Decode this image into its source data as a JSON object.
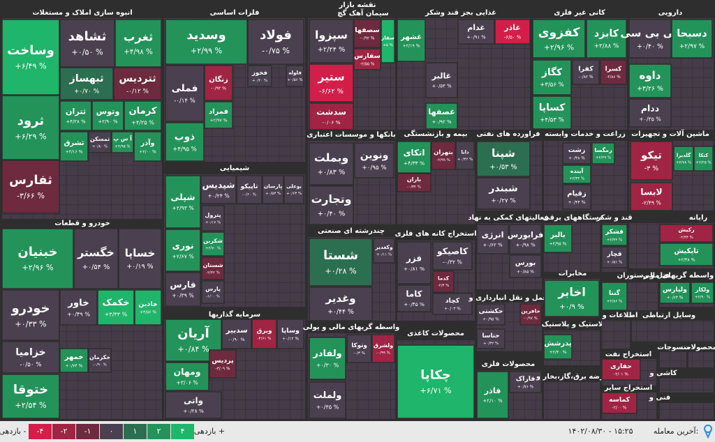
{
  "header": {
    "title": "نقشه بازار"
  },
  "sectors": [
    {
      "title": "انبوه سازی املاک و مستغلات",
      "tiles": [
        {
          "name": "وساخت",
          "change": "+۶/۴۹ %"
        },
        {
          "name": "ثرود",
          "change": "+۶/۲۹ %"
        },
        {
          "name": "ثفارس",
          "change": "-۳/۶۶ %"
        },
        {
          "name": "ثشاهد",
          "change": "+۰/۵۰ %"
        },
        {
          "name": "ثغرب",
          "change": "+۴/۹۸ %"
        },
        {
          "name": "ثبهساز",
          "change": "+۰/۷۰ %"
        },
        {
          "name": "ثتردیس",
          "change": "-۰/۱۲ %"
        },
        {
          "name": "ثتران",
          "change": "+۴/۲۸ %"
        },
        {
          "name": "وتوس",
          "change": "+۲/۹۰ %"
        },
        {
          "name": "کرمان",
          "change": "+۴/۲۵ %"
        },
        {
          "name": "ثشرق",
          "change": "+۴/۱۶ %"
        },
        {
          "name": "ثمسکن",
          "change": "+۰/۸۰ %"
        },
        {
          "name": "آ س پ",
          "change": "+۴/۹۵ %"
        },
        {
          "name": "وآذر",
          "change": "+۲/۰۰ %"
        }
      ]
    },
    {
      "title": "خودرو و قطعات",
      "tiles": [
        {
          "name": "خبنیان",
          "change": "+۲/۹۶ %"
        },
        {
          "name": "خگستر",
          "change": "+۰/۵۴ %"
        },
        {
          "name": "خساپا",
          "change": "+۰/۱۹ %"
        },
        {
          "name": "خودرو",
          "change": "+۰/۳۳ %"
        },
        {
          "name": "خاور",
          "change": "+۰/۴۹ %"
        },
        {
          "name": "خکمک",
          "change": "+۴/۴۳ %"
        },
        {
          "name": "خاذین",
          "change": "+۳/۵۶ %"
        },
        {
          "name": "خزامیا",
          "change": "-۰/۵۰ %"
        },
        {
          "name": "ختوقا",
          "change": "+۲/۵۴ %"
        },
        {
          "name": "خمهر",
          "change": "+۰/۷۴ %"
        },
        {
          "name": "خکرمان",
          "change": "-۰/۹۰ %"
        }
      ]
    },
    {
      "title": "فلزات اساسی",
      "tiles": [
        {
          "name": "وسدید",
          "change": "+۲/۹۹ %"
        },
        {
          "name": "فولاد",
          "change": "-۰/۷۵ %"
        },
        {
          "name": "فملی",
          "change": "-۰/۱۴ %"
        },
        {
          "name": "ذوب",
          "change": "+۴/۹۵ %"
        },
        {
          "name": "زنگان",
          "change": "-۰/۹۲ %"
        },
        {
          "name": "فمراد",
          "change": "+۲/۹۷ %"
        },
        {
          "name": "فخوز",
          "change": "+۰/۴۰ %"
        },
        {
          "name": "فلوله",
          "change": "+۰/۵۶ %"
        }
      ]
    },
    {
      "title": "شیمیایی",
      "tiles": [
        {
          "name": "شپلی",
          "change": "+۲/۹۳ %"
        },
        {
          "name": "شپدیس",
          "change": "+۰/۲۴ %"
        },
        {
          "name": "تاپیکو",
          "change": "-۰/۶۰ %"
        },
        {
          "name": "پارسان",
          "change": "+۰/۵۳ %"
        },
        {
          "name": "بوعلی",
          "change": "+۰/۶۳ %"
        },
        {
          "name": "نوری",
          "change": "+۲/۶۷ %"
        },
        {
          "name": "فارس",
          "change": "+۰/۳۹ %"
        },
        {
          "name": "پترول",
          "change": "+۰/۱۷ %"
        },
        {
          "name": "شکربن",
          "change": "+۲/۷۰ %"
        },
        {
          "name": "شستان",
          "change": "-۲/۴۲ %"
        },
        {
          "name": "پارس",
          "change": "-۱/۰۰ %"
        }
      ]
    },
    {
      "title": "سرمایه گذاریها",
      "tiles": [
        {
          "name": "آریان",
          "change": "+۰/۸۴ %"
        },
        {
          "name": "سدبیر",
          "change": "-۰/۹۰ %"
        },
        {
          "name": "وبرق",
          "change": "-۴/۶۱ %"
        },
        {
          "name": "وساپا",
          "change": "+۰/۱۲ %"
        },
        {
          "name": "ومهان",
          "change": "+۳/۰۶ %"
        },
        {
          "name": "پردیس",
          "change": "-۳/۰۹ %"
        },
        {
          "name": "واتی",
          "change": "+۰/۲۸ %"
        }
      ]
    },
    {
      "title": "سیمان آهک گچ",
      "tiles": [
        {
          "name": "سپزوا",
          "change": "+۲/۲۴ %"
        },
        {
          "name": "سصفها",
          "change": "-۰/۹۲ %"
        },
        {
          "name": "سفار",
          "change": "+۵ %"
        },
        {
          "name": "سفارس",
          "change": "-۲/۵۵ %"
        },
        {
          "name": "ستیر",
          "change": "-۶/۶۲ %"
        },
        {
          "name": "سدشت",
          "change": "-۰/۰۶ %"
        }
      ]
    },
    {
      "title": "غذایی بجز قند وشکر",
      "tiles": [
        {
          "name": "غشهر",
          "change": "+۲/۱۹ %"
        },
        {
          "name": "غدام",
          "change": "+۰/۹۱ %"
        },
        {
          "name": "غاذر",
          "change": "-۶/۵۰ %"
        },
        {
          "name": "غالبر",
          "change": "+۰/۵۳ %"
        },
        {
          "name": "غصفها",
          "change": "+۰/۹۲ %"
        }
      ]
    },
    {
      "title": "کانی غیر فلزی",
      "tiles": [
        {
          "name": "کفزوی",
          "change": "+۲/۹۶ %"
        },
        {
          "name": "کابزد",
          "change": "+۲/۸۸ %"
        },
        {
          "name": "کگاز",
          "change": "+۳/۵۶ %"
        },
        {
          "name": "کفرا",
          "change": "-۰/۸۲ %"
        },
        {
          "name": "کسرا",
          "change": "-۲/۸۶ %"
        },
        {
          "name": "کساپا",
          "change": "+۴/۵۳ %"
        }
      ]
    },
    {
      "title": "دارویی",
      "tiles": [
        {
          "name": "کی بی سی",
          "change": "+۰/۴۰ %"
        },
        {
          "name": "دسبحا",
          "change": "+۲/۹۷ %"
        },
        {
          "name": "داوه",
          "change": "+۳/۲۶ %"
        },
        {
          "name": "ددام",
          "change": "+۰/۳۵ %"
        }
      ]
    },
    {
      "title": "بانکها و موسسات اعتباری",
      "tiles": [
        {
          "name": "ونوین",
          "change": "+۰/۹۵ %"
        },
        {
          "name": "وبملت",
          "change": "+۰/۸۳ %"
        },
        {
          "name": "وتجارت",
          "change": "+۰/۴۰ %"
        }
      ]
    },
    {
      "title": "بیمه و بازنشستگی",
      "tiles": [
        {
          "name": "اتکای",
          "change": "+۴/۳۳ %"
        },
        {
          "name": "بتهران",
          "change": "-۲/۹۹ %"
        },
        {
          "name": "دانا",
          "change": "+۰/۳۲ %"
        },
        {
          "name": "باران",
          "change": "-۰/۳۴ %"
        }
      ]
    },
    {
      "title": "فراورده های نفتی",
      "tiles": [
        {
          "name": "شپنا",
          "change": "+۰/۵۳ %"
        },
        {
          "name": "شبندر",
          "change": "+۰/۲۷ %"
        }
      ]
    },
    {
      "title": "زراعت و خدمات وابسته",
      "tiles": [
        {
          "name": "زشت",
          "change": "+۰/۳۸ %"
        },
        {
          "name": "زمگسا",
          "change": "+۲/۲۹ %"
        },
        {
          "name": "آینده",
          "change": "+۲/۳۴ %"
        },
        {
          "name": "زقیام",
          "change": "+۰/۴۴ %"
        }
      ]
    },
    {
      "title": "ماشین آلات و تجهیزات",
      "tiles": [
        {
          "name": "تیکو",
          "change": "-۳ %"
        },
        {
          "name": "گلدیرا",
          "change": "+۲/۷۸ %"
        },
        {
          "name": "کتکا",
          "change": "+۲/۲۵ %"
        },
        {
          "name": "لابسا",
          "change": "-۲/۴۹ %"
        }
      ]
    },
    {
      "title": "چندرشته ای صنعتی",
      "tiles": [
        {
          "name": "شستا",
          "change": "+۰/۲۸ %"
        },
        {
          "name": "وکغدیر",
          "change": "+۰/۱۱ %"
        },
        {
          "name": "وغدیر",
          "change": "+۰/۴۴ %"
        }
      ]
    },
    {
      "title": "استخراج کانه های فلزی",
      "tiles": [
        {
          "name": "کاصیکو",
          "change": "-۰/۳۲ %"
        },
        {
          "name": "فزر",
          "change": "+۰/۸۱ %"
        },
        {
          "name": "کدما",
          "change": "-۲/۳ %"
        },
        {
          "name": "کاما",
          "change": "+۰/۴۵ %"
        },
        {
          "name": "کچاد",
          "change": "+۰/۰۳ %"
        }
      ]
    },
    {
      "title": "فعالیتهای کمکی به نهاد",
      "tiles": [
        {
          "name": "انرژی",
          "change": "+۰/۶۲ %"
        },
        {
          "name": "فرابورس",
          "change": "+۰/۹۸ %"
        },
        {
          "name": "بورس",
          "change": "+۰/۸۵ %"
        }
      ]
    },
    {
      "title": "حمل و نقل انبارداری و",
      "tiles": [
        {
          "name": "حکشتی",
          "change": "+۰/۹۵ %"
        },
        {
          "name": "حافرین",
          "change": "-۰/۹۷ %"
        },
        {
          "name": "حتاسا",
          "change": "+۰/۳۲ %"
        }
      ]
    },
    {
      "title": "محصولات فلزی",
      "tiles": [
        {
          "name": "فاذر",
          "change": "+۲/۱۰ %"
        },
        {
          "name": "فاراک",
          "change": "+۰/۷۶ %"
        }
      ]
    },
    {
      "title": "واسطه گریهای مالی و پولی",
      "tiles": [
        {
          "name": "وتوکا",
          "change": "-۰/۳ %"
        },
        {
          "name": "ولشرق",
          "change": "-۰/۹۹ %"
        },
        {
          "name": "ولفادر",
          "change": "+۰/۳۰ %"
        },
        {
          "name": "ولملت",
          "change": "+۰/۴۵ %"
        }
      ]
    },
    {
      "title": "محصولات کاغذی",
      "tiles": [
        {
          "name": "چکاپا",
          "change": "+۶/۷۱ %"
        }
      ]
    },
    {
      "title": "دستگاههای برقی",
      "tiles": [
        {
          "name": "بالبر",
          "change": "+۲/۹۵ %"
        }
      ]
    },
    {
      "title": "قند و شکر",
      "tiles": [
        {
          "name": "قشکر",
          "change": "+۲/۴۴ %"
        },
        {
          "name": "قچار",
          "change": "+۰/۵۱ %"
        }
      ]
    },
    {
      "title": "رایانه",
      "tiles": [
        {
          "name": "رکیش",
          "change": "-۲/۴۳ %"
        },
        {
          "name": "تاپکیش",
          "change": "+۲/۳۸ %"
        }
      ]
    },
    {
      "title": "مخابرات",
      "tiles": [
        {
          "name": "اخابر",
          "change": "+۰/۹ %"
        }
      ]
    },
    {
      "title": "هتل و رستوران",
      "tiles": [
        {
          "name": "گنتا",
          "change": "+۲/۸۶ %"
        }
      ]
    },
    {
      "title": "سایر واسطه گریهای مالی",
      "tiles": [
        {
          "name": "ولکار",
          "change": "+۲/۹۰ %"
        },
        {
          "name": "ولپارس",
          "change": "+۰/۶۳ %"
        }
      ]
    },
    {
      "title": "لاستیک و پلاستیک",
      "tiles": [
        {
          "name": "پدرشش",
          "change": "+۲/۴۰ %"
        }
      ]
    },
    {
      "title": "اطلاعات و",
      "tiles": []
    },
    {
      "title": "وسایل ارتباطی",
      "tiles": []
    },
    {
      "title": "عرضه برق،گاز،بخار و",
      "tiles": []
    },
    {
      "title": "استخراج نفت",
      "tiles": [
        {
          "name": "حفاری",
          "change": "-۲/۰۱ %"
        }
      ]
    },
    {
      "title": "استخراج سایر",
      "tiles": [
        {
          "name": "کماسه",
          "change": "-۲/۰۰ %"
        }
      ]
    },
    {
      "title": "منسوجات",
      "tiles": []
    },
    {
      "title": "محصولات",
      "tiles": []
    },
    {
      "title": "کاشی و",
      "tiles": []
    },
    {
      "title": "فنی و",
      "tiles": []
    }
  ],
  "legend": {
    "positive_label": "بازدهی +",
    "negative_label": "بازدهی -",
    "steps": [
      "۴",
      "۲",
      "۱",
      "۰",
      "-۱",
      "-۲",
      "-۴"
    ]
  },
  "footer": {
    "last_trade_label": "آخرین معامله:",
    "last_trade_time": "۱۴۰۲/۰۸/۳۰ - ۱۵:۲۵"
  }
}
